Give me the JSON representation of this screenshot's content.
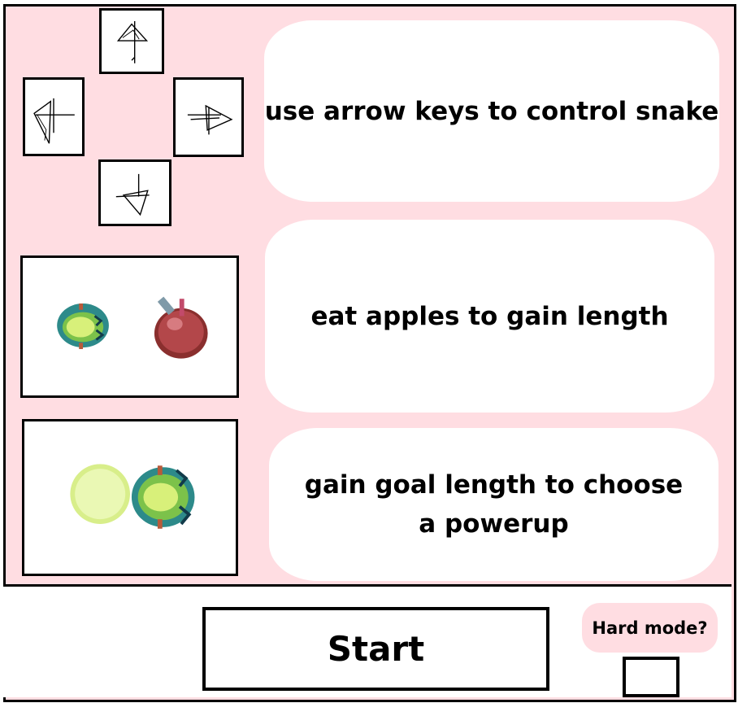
{
  "instructions": {
    "controls_text": "use arrow keys to control snake",
    "apples_text": "eat apples to gain length",
    "powerup_text": "gain goal length to choose a powerup"
  },
  "controls": {
    "start_label": "Start",
    "hard_mode_label": "Hard mode?"
  },
  "icons": {
    "up": "up-arrow-key-icon",
    "left": "left-arrow-key-icon",
    "right": "right-arrow-key-icon",
    "down": "down-arrow-key-icon",
    "snake": "snake-head-icon",
    "apple": "apple-icon",
    "powerup": "powerup-orb-icon"
  },
  "colors": {
    "background": "#ffdde2",
    "apple": "#b3474a",
    "snake_outer": "#2d8a8a",
    "snake_inner": "#d8f07a",
    "powerup": "#e4f5a0"
  }
}
